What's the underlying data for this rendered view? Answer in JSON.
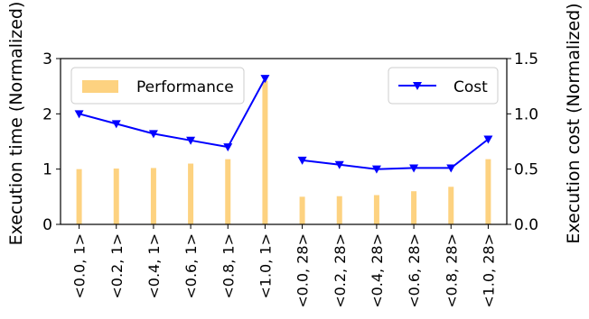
{
  "chart_data": {
    "type": "bar",
    "categories": [
      "<0.0, 1>",
      "<0.2, 1>",
      "<0.4, 1>",
      "<0.6, 1>",
      "<0.8, 1>",
      "<1.0, 1>",
      "<0.0, 28>",
      "<0.2, 28>",
      "<0.4, 28>",
      "<0.6, 28>",
      "<0.8, 28>",
      "<1.0, 28>"
    ],
    "title": "",
    "xlabel": "",
    "ylabel": "Execution time (Normalized)",
    "ylabel_right": "Execution cost (Normalized)",
    "ylim": [
      0,
      3
    ],
    "ylim_right": [
      0,
      1.5
    ],
    "yticks": [
      "0",
      "1",
      "2",
      "3"
    ],
    "yticks_right": [
      "0.0",
      "0.5",
      "1.0",
      "1.5"
    ],
    "legend": {
      "left": "top-left",
      "right": "top-right"
    },
    "grid": false,
    "series": [
      {
        "name": "Performance",
        "axis": "left",
        "kind": "bar",
        "color": "#fdd280",
        "values": [
          1.0,
          1.01,
          1.02,
          1.1,
          1.18,
          2.6,
          0.5,
          0.51,
          0.53,
          0.6,
          0.68,
          1.18
        ]
      },
      {
        "name": "Cost",
        "axis": "right",
        "kind": "line",
        "marker": "triangle-down",
        "color": "#0000ff",
        "segments": [
          [
            0,
            5
          ],
          [
            6,
            11
          ]
        ],
        "values": [
          1.0,
          0.91,
          0.82,
          0.76,
          0.7,
          1.32,
          0.58,
          0.54,
          0.5,
          0.51,
          0.51,
          0.77
        ]
      }
    ]
  }
}
